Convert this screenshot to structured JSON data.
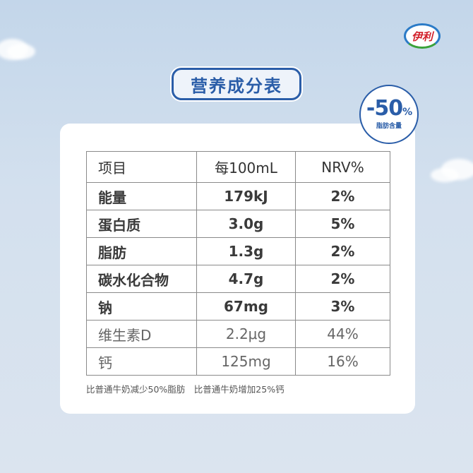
{
  "brand": {
    "logo_text": "伊利"
  },
  "title": "营养成分表",
  "badge": {
    "value": "-50",
    "unit": "%",
    "label": "脂肪含量"
  },
  "table": {
    "headers": [
      "项目",
      "每100mL",
      "NRV%"
    ],
    "rows": [
      [
        "能量",
        "179kJ",
        "2%"
      ],
      [
        "蛋白质",
        "3.0g",
        "5%"
      ],
      [
        "脂肪",
        "1.3g",
        "2%"
      ],
      [
        "碳水化合物",
        "4.7g",
        "2%"
      ],
      [
        "钠",
        "67mg",
        "3%"
      ],
      [
        "维生素D",
        "2.2μg",
        "44%"
      ],
      [
        "钙",
        "125mg",
        "16%"
      ]
    ]
  },
  "note": "比普通牛奶减少50%脂肪　比普通牛奶增加25%钙"
}
